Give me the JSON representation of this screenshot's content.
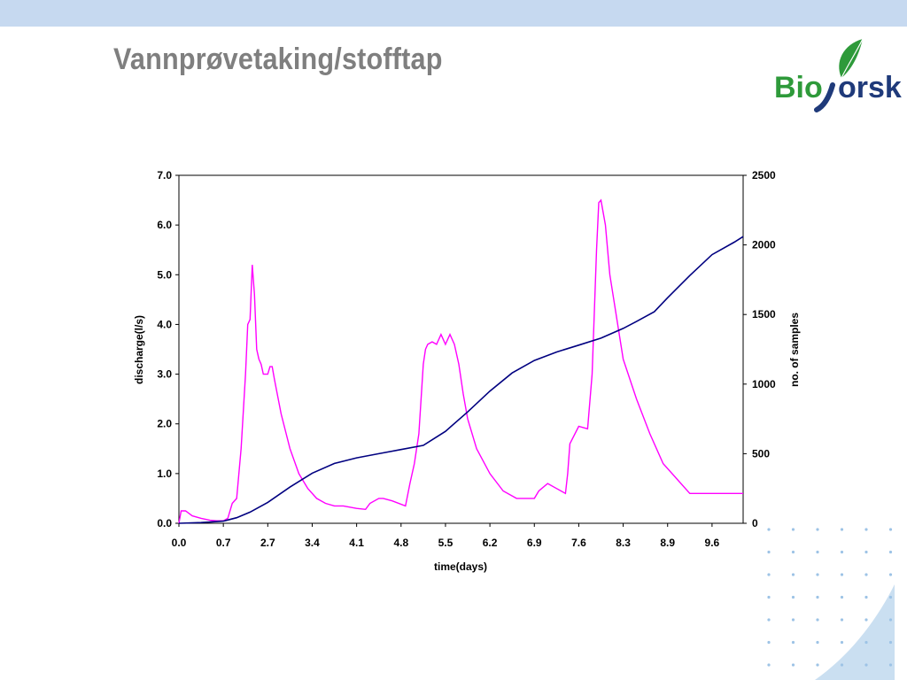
{
  "slide": {
    "title": "Vannprøvetaking/stofftap",
    "logo_text": "Bioforsk"
  },
  "colors": {
    "header_band": "#c6d9f0",
    "title": "#7f7f7f",
    "discharge_line": "#ff00ff",
    "samples_line": "#000080",
    "logo_green": "#2e9a3a",
    "logo_navy": "#1f3a7a",
    "dots": "#9dc3e6",
    "wave": "#bdd7ee"
  },
  "chart_data": {
    "type": "line",
    "xlabel": "time(days)",
    "ylabel_left": "discharge(l/s)",
    "ylabel_right": "no. of samples",
    "x_tick_labels": [
      "0.0",
      "0.7",
      "2.7",
      "3.4",
      "4.1",
      "4.8",
      "5.5",
      "6.2",
      "6.9",
      "7.6",
      "8.3",
      "8.9",
      "9.6"
    ],
    "ylim_left": [
      0,
      7
    ],
    "yticks_left": [
      "0.0",
      "1.0",
      "2.0",
      "3.0",
      "4.0",
      "5.0",
      "6.0",
      "7.0"
    ],
    "ylim_right": [
      0,
      2500
    ],
    "yticks_right": [
      "0",
      "500",
      "1000",
      "1500",
      "2000",
      "2500"
    ],
    "x_axis_note": "category axis (13 labelled ticks, sample index 0–12.7)",
    "series": [
      {
        "axis": "left",
        "x": [
          0,
          0.05,
          0.15,
          0.3,
          0.5,
          0.7,
          0.85,
          1.0,
          1.1,
          1.2,
          1.3,
          1.4,
          1.5,
          1.55,
          1.6,
          1.65,
          1.7,
          1.75,
          1.8,
          1.85,
          1.9,
          2.0,
          2.05,
          2.1,
          2.15,
          2.3,
          2.5,
          2.7,
          2.9,
          3.1,
          3.3,
          3.5,
          3.7,
          4.0,
          4.2,
          4.3,
          4.5,
          4.6,
          4.8,
          5.1,
          5.2,
          5.3,
          5.4,
          5.5,
          5.55,
          5.6,
          5.7,
          5.8,
          5.9,
          6.0,
          6.1,
          6.2,
          6.3,
          6.4,
          6.5,
          6.7,
          7.0,
          7.3,
          7.6,
          8.0,
          8.1,
          8.3,
          8.5,
          8.7,
          8.75,
          8.8,
          9.0,
          9.2,
          9.3,
          9.4,
          9.45,
          9.5,
          9.6,
          9.7,
          10.0,
          10.3,
          10.6,
          10.9,
          11.2,
          11.5,
          11.8,
          12.1,
          12.3,
          12.7
        ],
        "values": [
          0.0,
          0.25,
          0.25,
          0.15,
          0.1,
          0.06,
          0.05,
          0.05,
          0.1,
          0.4,
          0.5,
          1.5,
          3.0,
          4.0,
          4.1,
          5.2,
          4.6,
          3.5,
          3.3,
          3.2,
          3.0,
          3.0,
          3.15,
          3.15,
          2.9,
          2.2,
          1.5,
          1.0,
          0.7,
          0.5,
          0.4,
          0.35,
          0.35,
          0.3,
          0.28,
          0.4,
          0.5,
          0.5,
          0.45,
          0.35,
          0.8,
          1.2,
          1.8,
          3.2,
          3.5,
          3.6,
          3.65,
          3.6,
          3.8,
          3.6,
          3.8,
          3.6,
          3.2,
          2.6,
          2.1,
          1.5,
          1.0,
          0.65,
          0.5,
          0.5,
          0.65,
          0.8,
          0.7,
          0.6,
          1.0,
          1.6,
          1.95,
          1.9,
          3.0,
          5.5,
          6.45,
          6.5,
          6.0,
          5.0,
          3.3,
          2.5,
          1.8,
          1.2,
          0.9,
          0.6,
          0.6,
          0.6,
          0.6,
          0.6
        ]
      },
      {
        "axis": "right",
        "x": [
          0,
          0.5,
          1.0,
          1.3,
          1.6,
          2.0,
          2.5,
          3.0,
          3.5,
          4.0,
          4.5,
          5.0,
          5.5,
          5.7,
          6.0,
          6.5,
          7.0,
          7.5,
          8.0,
          8.5,
          9.0,
          9.5,
          10.0,
          10.3,
          10.7,
          11.0,
          11.5,
          12.0,
          12.5,
          12.7
        ],
        "values": [
          0,
          5,
          15,
          40,
          80,
          150,
          260,
          360,
          430,
          470,
          500,
          530,
          560,
          600,
          660,
          800,
          950,
          1080,
          1170,
          1230,
          1280,
          1330,
          1400,
          1450,
          1520,
          1620,
          1780,
          1930,
          2020,
          2060
        ]
      }
    ]
  }
}
